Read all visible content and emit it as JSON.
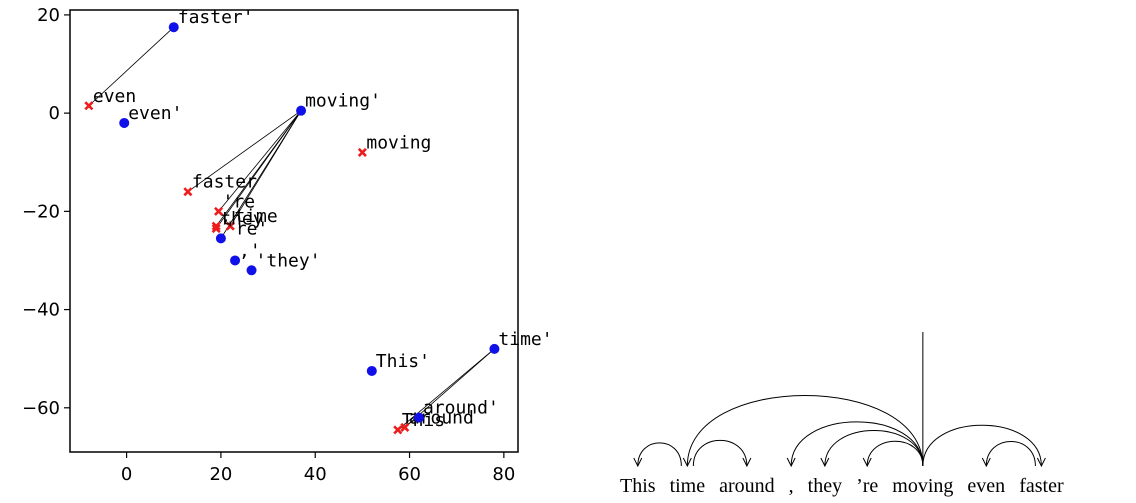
{
  "chart_data": [
    {
      "type": "scatter",
      "title": "",
      "xlabel": "",
      "ylabel": "",
      "xlim": [
        -12,
        83
      ],
      "ylim": [
        -69,
        21
      ],
      "xticks": [
        0,
        20,
        40,
        60,
        80
      ],
      "yticks": [
        20,
        0,
        -20,
        -40,
        -60
      ],
      "xtick_labels": [
        "0",
        "20",
        "40",
        "60",
        "80"
      ],
      "ytick_labels": [
        "20",
        "0",
        "−20",
        "−40",
        "−60"
      ],
      "series": [
        {
          "marker": "x",
          "color": "#ee1c1c",
          "points": [
            {
              "label": "This",
              "x": 57.5,
              "y": -64.5
            },
            {
              "label": "time",
              "x": 22,
              "y": -23
            },
            {
              "label": "around",
              "x": 59,
              "y": -64
            },
            {
              "label": "they",
              "x": 19,
              "y": -23.5
            },
            {
              "label": "'re",
              "x": 19.5,
              "y": -20
            },
            {
              "label": "moving",
              "x": 50,
              "y": -8
            },
            {
              "label": "even",
              "x": -8,
              "y": 1.5
            },
            {
              "label": "faster",
              "x": 13,
              "y": -16
            },
            {
              "label": ",",
              "x": 19,
              "y": -23
            }
          ]
        },
        {
          "marker": "o",
          "color": "#1010e8",
          "points": [
            {
              "label": "This'",
              "x": 52,
              "y": -52.5
            },
            {
              "label": "time'",
              "x": 78,
              "y": -48
            },
            {
              "label": "around'",
              "x": 62,
              "y": -62
            },
            {
              "label": "'they'",
              "x": 26.5,
              "y": -32
            },
            {
              "label": ",'",
              "x": 23,
              "y": -30
            },
            {
              "label": "'re'",
              "x": 20,
              "y": -25.5
            },
            {
              "label": "moving'",
              "x": 37,
              "y": 0.5
            },
            {
              "label": "even'",
              "x": -0.5,
              "y": -2
            },
            {
              "label": "faster'",
              "x": 10,
              "y": 17.5
            }
          ]
        }
      ],
      "links": [
        {
          "from": [
            10,
            17.5
          ],
          "to": [
            -8,
            1.5
          ]
        },
        {
          "from": [
            37,
            0.5
          ],
          "to": [
            13,
            -16
          ]
        },
        {
          "from": [
            37,
            0.5
          ],
          "to": [
            19.5,
            -20
          ]
        },
        {
          "from": [
            37,
            0.5
          ],
          "to": [
            19,
            -23.5
          ]
        },
        {
          "from": [
            37,
            0.5
          ],
          "to": [
            22,
            -23
          ]
        },
        {
          "from": [
            37,
            0.5
          ],
          "to": [
            19,
            -23
          ]
        },
        {
          "from": [
            37,
            0.5
          ],
          "to": [
            20,
            -25.5
          ]
        },
        {
          "from": [
            78,
            -48
          ],
          "to": [
            57.5,
            -64.5
          ]
        },
        {
          "from": [
            78,
            -48
          ],
          "to": [
            59,
            -64
          ]
        },
        {
          "from": [
            62,
            -62
          ],
          "to": [
            57.5,
            -64.5
          ]
        }
      ]
    },
    {
      "type": "dependency-tree",
      "words": [
        "This",
        "time",
        "around",
        ",",
        "they",
        "’re",
        "moving",
        "even",
        "faster"
      ],
      "root_index": 6,
      "arcs": [
        {
          "from": 1,
          "to": 0
        },
        {
          "from": 1,
          "to": 2
        },
        {
          "from": 6,
          "to": 1
        },
        {
          "from": 6,
          "to": 3
        },
        {
          "from": 6,
          "to": 4
        },
        {
          "from": 6,
          "to": 5
        },
        {
          "from": 6,
          "to": 8
        },
        {
          "from": 8,
          "to": 7
        }
      ]
    }
  ]
}
